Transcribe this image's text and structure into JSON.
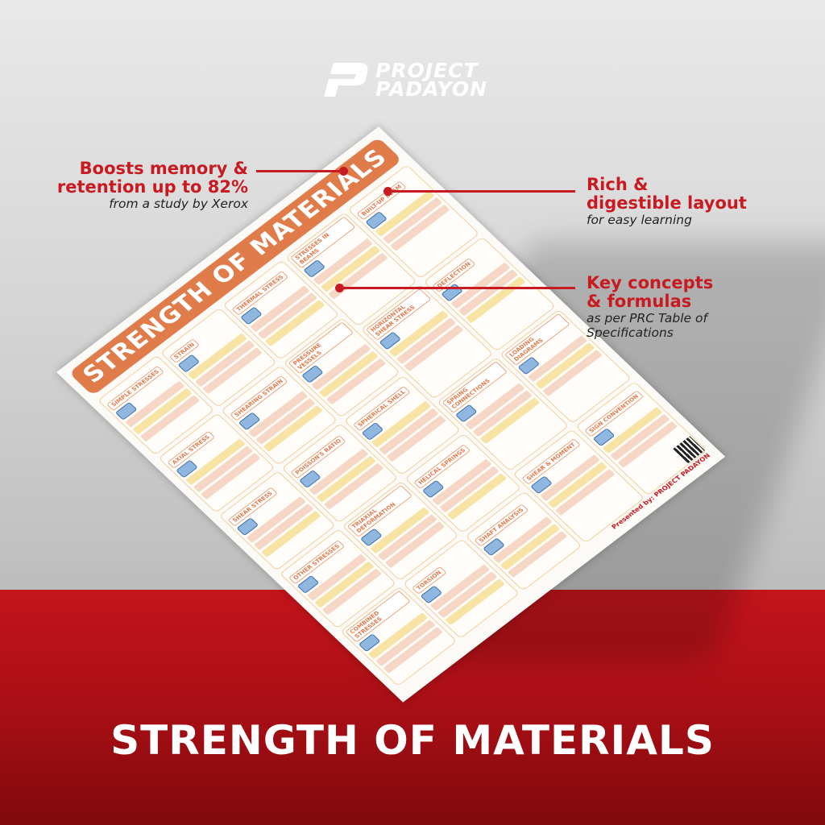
{
  "brand": {
    "line1": "PROJECT",
    "line2": "PADAYON"
  },
  "callouts": [
    {
      "heading_lines": [
        "Boosts memory &",
        "retention up to 82%"
      ],
      "sub": "from a study by Xerox"
    },
    {
      "heading_lines": [
        "Rich &",
        "digestible layout"
      ],
      "sub": "for easy learning"
    },
    {
      "heading_lines": [
        "Key concepts",
        "& formulas"
      ],
      "sub_lines": [
        "as per PRC Table of",
        "Specifications"
      ]
    }
  ],
  "poster": {
    "title": "STRENGTH OF MATERIALS",
    "columns": [
      [
        "SIMPLE STRESSES",
        "AXIAL STRESS",
        "SHEAR STRESS",
        "OTHER STRESSES",
        "COMBINED STRESSES"
      ],
      [
        "STRAIN",
        "SHEARING STRAIN",
        "POISSON'S RATIO",
        "TRIAXIAL DEFORMATION",
        "TORSION"
      ],
      [
        "THERMAL STRESS",
        "PRESSURE VESSELS",
        "SPHERICAL SHELL",
        "HELICAL SPRINGS",
        "SHAFT ANALYSIS"
      ],
      [
        "STRESSES IN BEAMS",
        "HORIZONTAL SHEAR STRESS",
        "SPRING CONNECTIONS",
        "SHEAR & MOMENT"
      ],
      [
        "BUILT-UP BEAM",
        "DEFLECTION",
        "LOADING DIAGRAMS",
        "SIGN CONVENTION"
      ]
    ],
    "presented_by": "Presented by: PROJECT PADAYON"
  },
  "bottom_title": "STRENGTH OF MATERIALS",
  "colors": {
    "accent_red": "#c81a21",
    "poster_orange": "#e07b4a",
    "floor_red": "#b0111a"
  }
}
